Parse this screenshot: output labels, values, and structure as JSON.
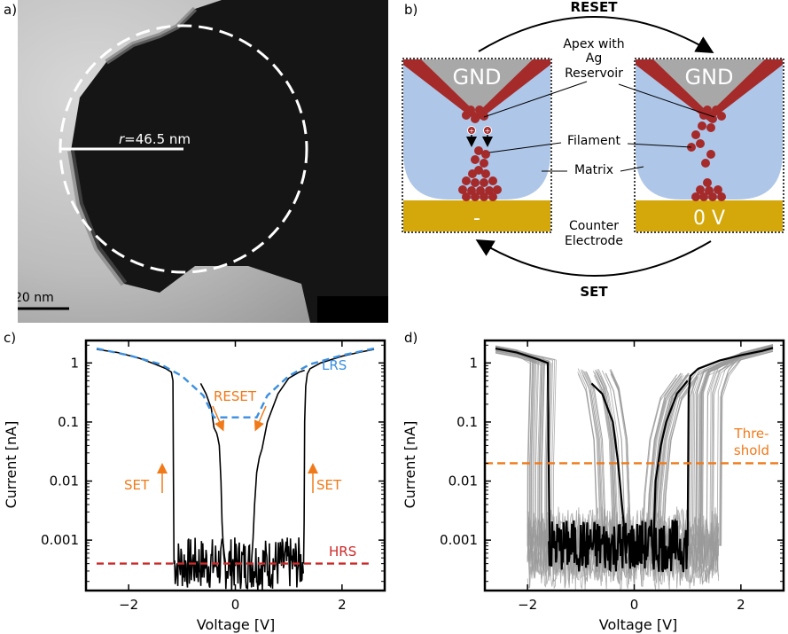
{
  "panels": {
    "a": {
      "label": "a)",
      "radius_label": "=46.5 nm",
      "radius_symbol": "r",
      "scalebar_label": "20 nm"
    },
    "b": {
      "label": "b)",
      "reset_label": "RESET",
      "set_label": "SET",
      "gnd_left": "GND",
      "gnd_right": "GND",
      "bias_left": "-",
      "bias_right": "0 V",
      "annotation_apex": [
        "Apex with",
        "Ag",
        "Reservoir"
      ],
      "annotation_filament": "Filament",
      "annotation_matrix": "Matrix",
      "annotation_counter": [
        "Counter",
        "Electrode"
      ]
    },
    "c": {
      "label": "c)",
      "xlabel": "Voltage [V]",
      "ylabel": "Current [nA]",
      "annotations": {
        "lrs": "LRS",
        "hrs": "HRS",
        "reset": "RESET",
        "set_left": "SET",
        "set_right": "SET"
      }
    },
    "d": {
      "label": "d)",
      "xlabel": "Voltage [V]",
      "ylabel": "Current [nA]",
      "threshold_label": [
        "Thre-",
        "shold"
      ]
    }
  },
  "colors": {
    "matrix": "#aec6e8",
    "electrode": "#d4a80a",
    "tip": "#a8a8a8",
    "silver": "#a52a2a",
    "lrs_fit": "#3b8fe0",
    "hrs_line": "#cc2a2a",
    "annotation": "#f07a1a",
    "cycle_gray": "#999999"
  },
  "chart_data": [
    {
      "type": "line",
      "panel": "c",
      "xlabel": "Voltage [V]",
      "ylabel": "Current [nA]",
      "xlim": [
        -2.8,
        2.8
      ],
      "ylim": [
        0.00014,
        2.4
      ],
      "yscale": "log",
      "xticks": [
        -2,
        0,
        2
      ],
      "xtick_labels": [
        "−2",
        "0",
        "2"
      ],
      "yticks": [
        0.001,
        0.01,
        0.1,
        1
      ],
      "ytick_labels": [
        "0.001",
        "0.01",
        "0.1",
        "1"
      ],
      "series": [
        {
          "role": "measured",
          "segments": [
            {
              "x": [
                -2.6,
                -2.2,
                -1.8,
                -1.5,
                -1.3,
                -1.2,
                -1.17,
                -1.16,
                -1.15
              ],
              "y": [
                1.7,
                1.5,
                1.2,
                0.95,
                0.8,
                0.7,
                0.5,
                0.01,
                0.0004
              ]
            },
            {
              "x": [
                -1.15,
                1.28
              ],
              "y": [
                0.0004,
                0.0004
              ],
              "noise": true
            },
            {
              "x": [
                -0.65,
                -0.55,
                -0.45,
                -0.4,
                -0.35,
                -0.33,
                -0.3,
                -0.27,
                -0.25,
                -0.22,
                -0.2
              ],
              "y": [
                0.45,
                0.3,
                0.17,
                0.08,
                0.065,
                0.055,
                0.04,
                0.01,
                0.002,
                0.0006,
                0.0004
              ]
            },
            {
              "x": [
                0.3,
                0.33,
                0.36,
                0.4,
                0.45,
                0.5,
                0.6,
                0.8,
                1.0,
                1.2,
                1.3
              ],
              "y": [
                0.0004,
                0.001,
                0.004,
                0.014,
                0.025,
                0.035,
                0.1,
                0.3,
                0.55,
                0.7,
                0.75
              ]
            },
            {
              "x": [
                1.28,
                1.29,
                1.3,
                1.32,
                1.35,
                1.4,
                1.6,
                2.0,
                2.3,
                2.6
              ],
              "y": [
                0.0004,
                0.002,
                0.1,
                0.4,
                0.65,
                0.8,
                1.0,
                1.3,
                1.5,
                1.7
              ]
            }
          ]
        },
        {
          "role": "LRS fit",
          "label": "LRS",
          "x": [
            -2.6,
            -2.0,
            -1.4,
            -1.0,
            -0.6,
            -0.4,
            0.4,
            0.6,
            1.0,
            1.4,
            2.0,
            2.6
          ],
          "y": [
            1.75,
            1.35,
            0.95,
            0.6,
            0.28,
            0.12,
            0.12,
            0.28,
            0.6,
            0.95,
            1.35,
            1.75
          ]
        },
        {
          "role": "HRS level",
          "label": "HRS",
          "x": [
            -2.6,
            2.5
          ],
          "y": [
            0.0004,
            0.0004
          ]
        }
      ]
    },
    {
      "type": "line",
      "panel": "d",
      "xlabel": "Voltage [V]",
      "ylabel": "Current [nA]",
      "xlim": [
        -2.8,
        2.8
      ],
      "ylim": [
        0.00014,
        2.4
      ],
      "yscale": "log",
      "xticks": [
        -2,
        0,
        2
      ],
      "xtick_labels": [
        "−2",
        "0",
        "2"
      ],
      "yticks": [
        0.001,
        0.01,
        0.1,
        1
      ],
      "ytick_labels": [
        "0.001",
        "0.01",
        "0.1",
        "1"
      ],
      "threshold": {
        "y": 0.02,
        "label": "Thre- shold"
      },
      "gray_cycles": {
        "set_neg_range": [
          -2.0,
          -1.5
        ],
        "reset_neg_range": [
          -0.8,
          -0.1
        ],
        "reset_pos_range": [
          0.15,
          0.6
        ],
        "set_pos_range": [
          1.0,
          1.65
        ]
      },
      "series": [
        {
          "role": "highlighted cycle",
          "segments": [
            {
              "x": [
                -2.6,
                -2.2,
                -1.8,
                -1.62,
                -1.6,
                -1.58
              ],
              "y": [
                1.75,
                1.5,
                1.15,
                1.0,
                0.01,
                0.0007
              ]
            },
            {
              "x": [
                -1.6,
                1.0
              ],
              "y": [
                0.0008,
                0.0008
              ],
              "noise": true
            },
            {
              "x": [
                -0.8,
                -0.6,
                -0.4,
                -0.3,
                -0.2,
                -0.15
              ],
              "y": [
                0.45,
                0.3,
                0.1,
                0.02,
                0.002,
                0.0004
              ]
            },
            {
              "x": [
                0.35,
                0.4,
                0.5,
                0.6,
                0.8,
                1.0
              ],
              "y": [
                0.0004,
                0.01,
                0.04,
                0.1,
                0.3,
                0.5
              ]
            },
            {
              "x": [
                1.0,
                1.02,
                1.05,
                1.2,
                1.6,
                2.0,
                2.4,
                2.6
              ],
              "y": [
                0.0008,
                0.3,
                0.6,
                0.8,
                1.1,
                1.35,
                1.6,
                1.8
              ]
            }
          ]
        }
      ]
    }
  ]
}
